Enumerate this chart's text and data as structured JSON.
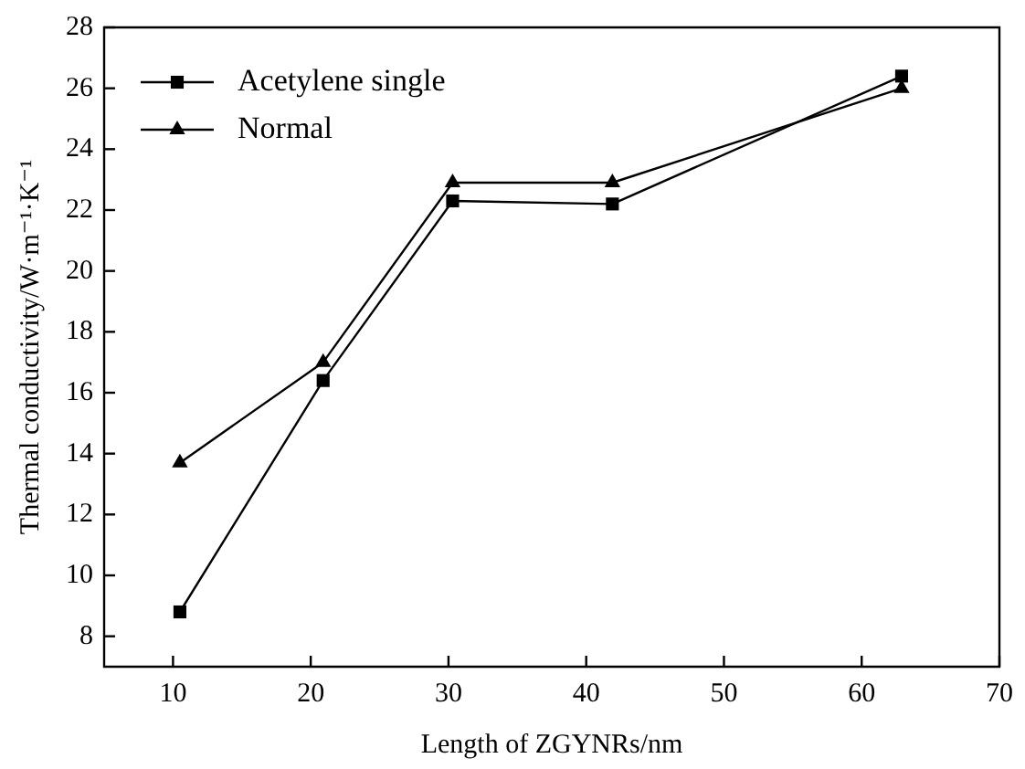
{
  "chart_data": {
    "type": "line",
    "xlabel": "Length of ZGYNRs/nm",
    "ylabel": "Thermal conductivity/W·m⁻¹·K⁻¹",
    "xlim": [
      5,
      70
    ],
    "xticks": [
      10,
      20,
      30,
      40,
      50,
      60,
      70
    ],
    "ylim": [
      7,
      28
    ],
    "yticks": [
      8,
      10,
      12,
      14,
      16,
      18,
      20,
      22,
      24,
      26,
      28
    ],
    "grid": false,
    "legend": "top left",
    "line_style": "solid",
    "series": [
      {
        "name": "Acetylene single",
        "color": "#000000",
        "marker": "square",
        "x": [
          10.5,
          20.9,
          30.3,
          41.9,
          62.9
        ],
        "values": [
          8.8,
          16.4,
          22.3,
          22.2,
          26.4
        ]
      },
      {
        "name": "Normal",
        "color": "#000000",
        "marker": "triangle",
        "x": [
          10.5,
          20.9,
          30.3,
          41.9,
          62.9
        ],
        "values": [
          13.7,
          17.0,
          22.9,
          22.9,
          26.0
        ]
      }
    ]
  }
}
